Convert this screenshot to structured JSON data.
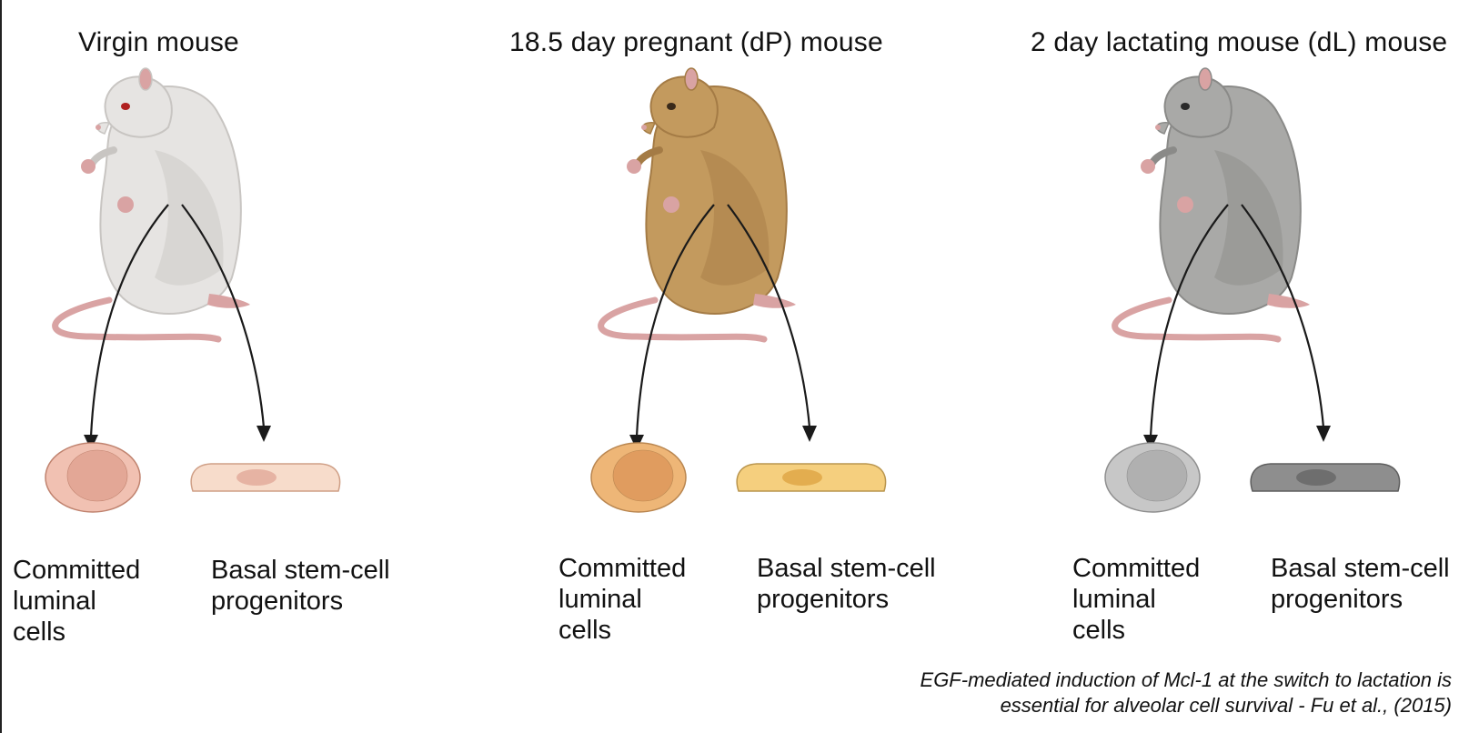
{
  "panels": [
    {
      "title": "Virgin mouse",
      "colors": {
        "fur": "#e6e4e2",
        "furShade": "#c8c5c2",
        "skin": "#d9a3a3",
        "eye": "#b02020",
        "luminalFill": "#f1c1b2",
        "luminalNucleus": "#e3a796",
        "luminalStroke": "#c0836f",
        "basalFill": "#f7dccb",
        "basalNucleus": "#e6b3a3",
        "basalStroke": "#cf9f86"
      },
      "luminal_label": "Committed\nluminal\ncells",
      "basal_label": "Basal stem-cell\nprogenitors"
    },
    {
      "title": "18.5 day pregnant (dP) mouse",
      "colors": {
        "fur": "#c39a5e",
        "furShade": "#a47b45",
        "skin": "#d9a3a3",
        "eye": "#3a2a1a",
        "luminalFill": "#eeb677",
        "luminalNucleus": "#e09c5f",
        "luminalStroke": "#b98650",
        "basalFill": "#f5cf7e",
        "basalNucleus": "#e3ad4f",
        "basalStroke": "#b9954e"
      },
      "luminal_label": "Committed\nluminal\ncells",
      "basal_label": "Basal stem-cell\nprogenitors"
    },
    {
      "title": "2 day lactating mouse (dL) mouse",
      "colors": {
        "fur": "#a9a9a7",
        "furShade": "#8a8a88",
        "skin": "#d9a3a3",
        "eye": "#2a2a2a",
        "luminalFill": "#c7c7c7",
        "luminalNucleus": "#b0b0b0",
        "luminalStroke": "#8f8f8f",
        "basalFill": "#8e8e8e",
        "basalNucleus": "#6e6e6e",
        "basalStroke": "#5e5e5e"
      },
      "luminal_label": "Committed\nluminal\ncells",
      "basal_label": "Basal stem-cell\nprogenitors"
    }
  ],
  "citation": "EGF-mediated induction of Mcl-1 at the switch to lactation is\nessential for alveolar cell survival - Fu et al., (2015)"
}
